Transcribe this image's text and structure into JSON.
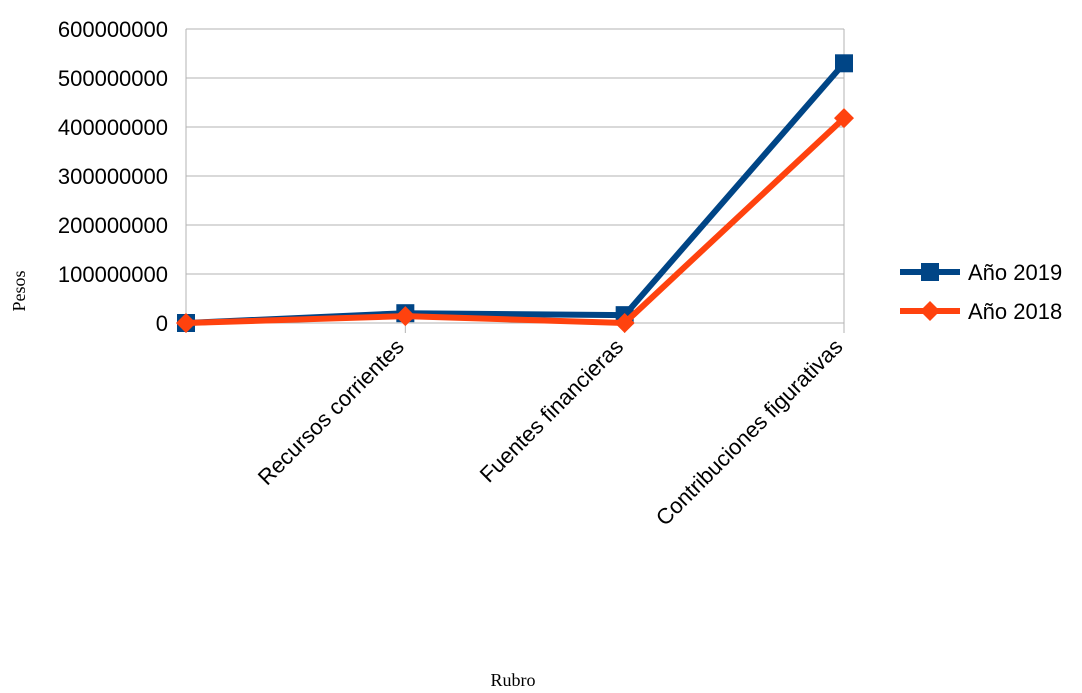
{
  "chart_data": {
    "type": "line",
    "title": "",
    "xlabel": "Rubro",
    "ylabel": "Pesos",
    "ylim": [
      0,
      600000000
    ],
    "yticks": [
      0,
      100000000,
      200000000,
      300000000,
      400000000,
      500000000,
      600000000
    ],
    "ytick_labels": [
      "0",
      "100000000",
      "200000000",
      "300000000",
      "400000000",
      "500000000",
      "600000000"
    ],
    "categories": [
      "",
      "Recursos corrientes",
      "Fuentes financieras",
      "Contribuciones figurativas"
    ],
    "grid": true,
    "legend_position": "right",
    "series": [
      {
        "name": "Año 2019",
        "color": "#004586",
        "marker": "square",
        "values": [
          0,
          20000000,
          16000000,
          530000000
        ]
      },
      {
        "name": "Año 2018",
        "color": "#ff420e",
        "marker": "diamond",
        "values": [
          0,
          14000000,
          0,
          418000000
        ]
      }
    ]
  }
}
